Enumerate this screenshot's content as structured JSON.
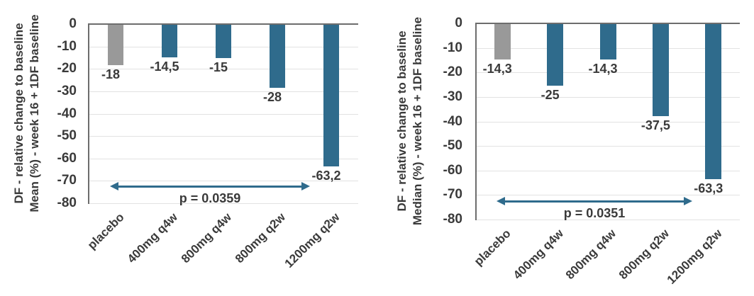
{
  "colors": {
    "background": "#ffffff",
    "placebo_bar": "#999999",
    "dose_bar": "#2f6b8c",
    "arrow": "#2f6b8c",
    "axis": "#6d6d6d",
    "gridline": "#e2e2e2",
    "text": "#3a3a3a"
  },
  "chart_data": [
    {
      "type": "bar",
      "panel": "left",
      "ylabel_line1": "DF - relative change to baseline",
      "ylabel_line2": "Mean (%) - week 16 + 1DF baseline",
      "categories": [
        "placebo",
        "400mg q4w",
        "800mg q4w",
        "800mg q2w",
        "1200mg q2w"
      ],
      "values": [
        -18,
        -14.5,
        -15,
        -28,
        -63.2
      ],
      "value_labels": [
        "-18",
        "-14,5",
        "-15",
        "-28",
        "-63,2"
      ],
      "bar_colors": [
        "#999999",
        "#2f6b8c",
        "#2f6b8c",
        "#2f6b8c",
        "#2f6b8c"
      ],
      "ylim": [
        -80,
        0
      ],
      "yticks": [
        0,
        -10,
        -20,
        -30,
        -40,
        -50,
        -60,
        -70,
        -80
      ],
      "ytick_labels": [
        "0",
        "-10",
        "-20",
        "-30",
        "-40",
        "-50",
        "-60",
        "-70",
        "-80"
      ],
      "grid": true,
      "legend": "none",
      "annotation": {
        "text": "p = 0.0359",
        "from_category": "placebo",
        "to_category": "1200mg q2w",
        "y": -72.5
      }
    },
    {
      "type": "bar",
      "panel": "right",
      "ylabel_line1": "DF - relative change to baseline",
      "ylabel_line2": "Median (%) - week 16 + 1DF baseline",
      "categories": [
        "placebo",
        "400mg q4w",
        "800mg q4w",
        "800mg q2w",
        "1200mg q2w"
      ],
      "values": [
        -14.3,
        -25,
        -14.3,
        -37.5,
        -63.3
      ],
      "value_labels": [
        "-14,3",
        "-25",
        "-14,3",
        "-37,5",
        "-63,3"
      ],
      "bar_colors": [
        "#999999",
        "#2f6b8c",
        "#2f6b8c",
        "#2f6b8c",
        "#2f6b8c"
      ],
      "ylim": [
        -80,
        0
      ],
      "yticks": [
        0,
        -10,
        -20,
        -30,
        -40,
        -50,
        -60,
        -70,
        -80
      ],
      "ytick_labels": [
        "0",
        "-10",
        "-20",
        "-30",
        "-40",
        "-50",
        "-60",
        "-70",
        "-80"
      ],
      "grid": true,
      "legend": "none",
      "annotation": {
        "text": "p = 0.0351",
        "from_category": "placebo",
        "to_category": "1200mg q2w",
        "y": -72.5
      }
    }
  ]
}
